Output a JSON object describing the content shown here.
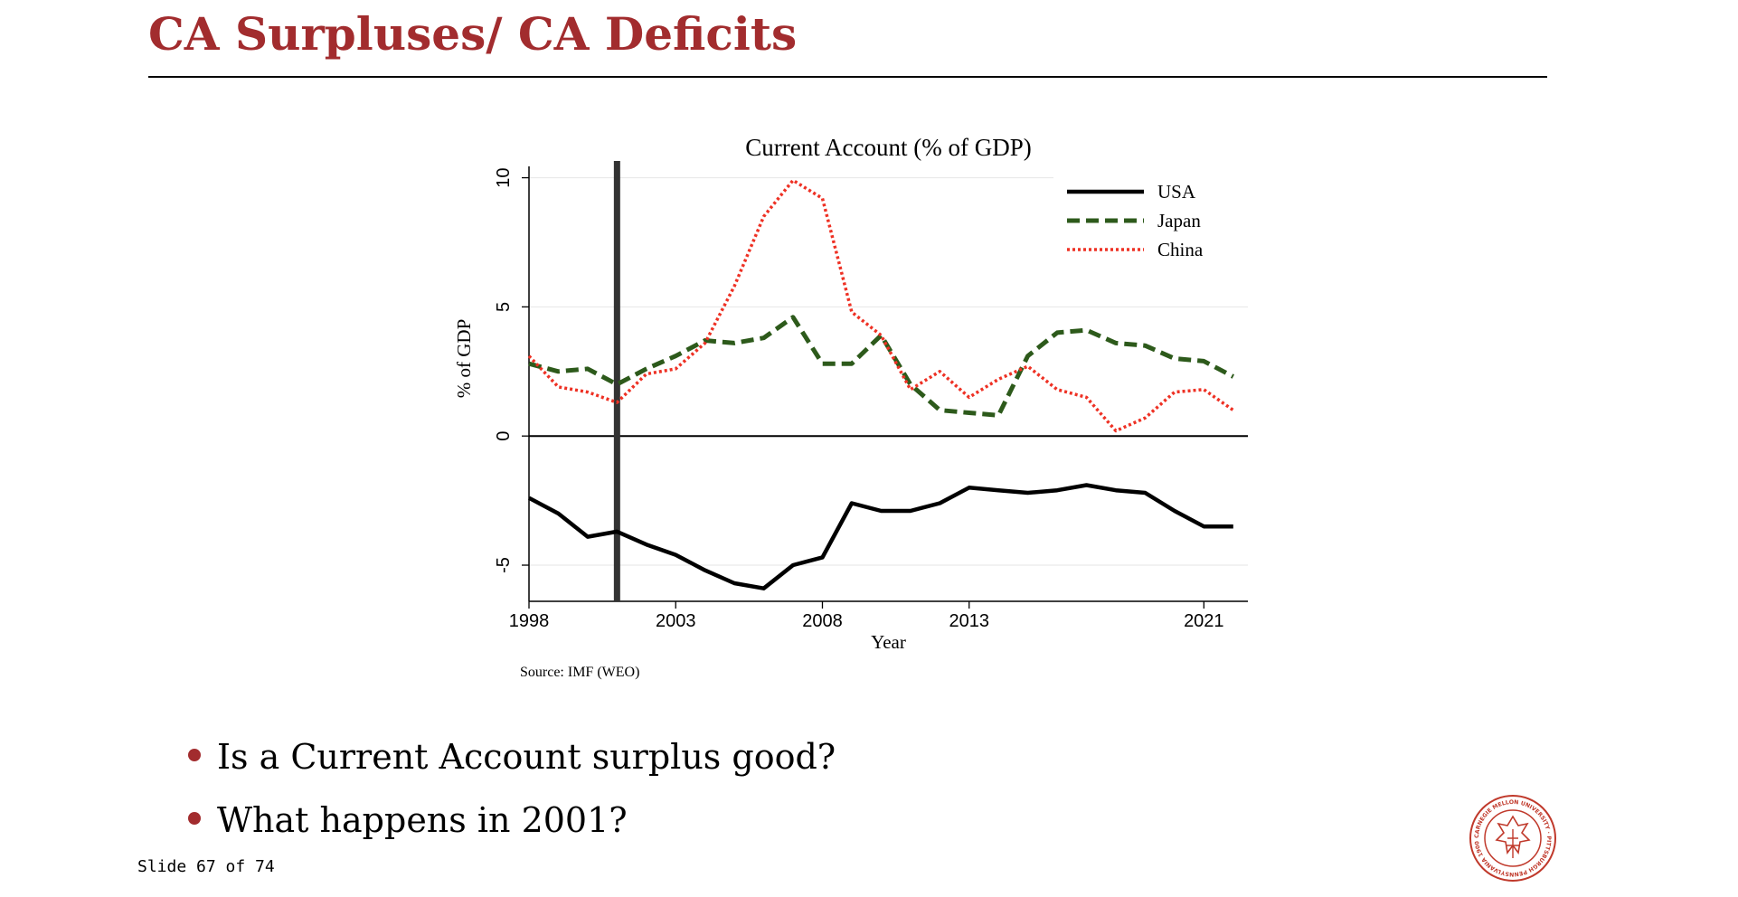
{
  "slide": {
    "title": "CA Surpluses/ CA Deficits",
    "bullets": [
      "Is a Current Account surplus good?",
      "What happens in 2001?"
    ],
    "slide_number": "Slide 67 of 74",
    "logo": {
      "icon": "cmu-seal-icon",
      "text": "CARNEGIE MELLON UNIVERSITY · PITTSBURGH PENNSYLVANIA 1900"
    },
    "accent_color": "#a22c2e"
  },
  "chart_data": {
    "type": "line",
    "title": "Current Account (% of GDP)",
    "xlabel": "Year",
    "ylabel": "% of GDP",
    "source": "Source: IMF (WEO)",
    "x": [
      1998,
      1999,
      2000,
      2001,
      2002,
      2003,
      2004,
      2005,
      2006,
      2007,
      2008,
      2009,
      2010,
      2011,
      2012,
      2013,
      2014,
      2015,
      2016,
      2017,
      2018,
      2019,
      2020,
      2021,
      2022
    ],
    "xticks": [
      1998,
      2003,
      2008,
      2013,
      2021
    ],
    "yticks": [
      -5,
      0,
      5,
      10
    ],
    "xlim": [
      1998,
      2022.5
    ],
    "ylim": [
      -6.4,
      10.3
    ],
    "grid": true,
    "legend_position": "top-right",
    "reference_line_x": 2001,
    "series": [
      {
        "name": "USA",
        "color": "#000000",
        "style": "solid",
        "values": [
          -2.4,
          -3.0,
          -3.9,
          -3.7,
          -4.2,
          -4.6,
          -5.2,
          -5.7,
          -5.9,
          -5.0,
          -4.7,
          -2.6,
          -2.9,
          -2.9,
          -2.6,
          -2.0,
          -2.1,
          -2.2,
          -2.1,
          -1.9,
          -2.1,
          -2.2,
          -2.9,
          -3.5,
          -3.5
        ]
      },
      {
        "name": "Japan",
        "color": "#2d5a1b",
        "style": "dashed",
        "values": [
          2.8,
          2.5,
          2.6,
          2.0,
          2.6,
          3.1,
          3.7,
          3.6,
          3.8,
          4.6,
          2.8,
          2.8,
          3.9,
          2.0,
          1.0,
          0.9,
          0.8,
          3.1,
          4.0,
          4.1,
          3.6,
          3.5,
          3.0,
          2.9,
          2.3
        ]
      },
      {
        "name": "China",
        "color": "#ee3124",
        "style": "dotted",
        "values": [
          3.1,
          1.9,
          1.7,
          1.3,
          2.4,
          2.6,
          3.6,
          5.8,
          8.5,
          9.9,
          9.2,
          4.8,
          3.9,
          1.8,
          2.5,
          1.5,
          2.2,
          2.7,
          1.8,
          1.5,
          0.2,
          0.7,
          1.7,
          1.8,
          1.0
        ]
      }
    ]
  }
}
